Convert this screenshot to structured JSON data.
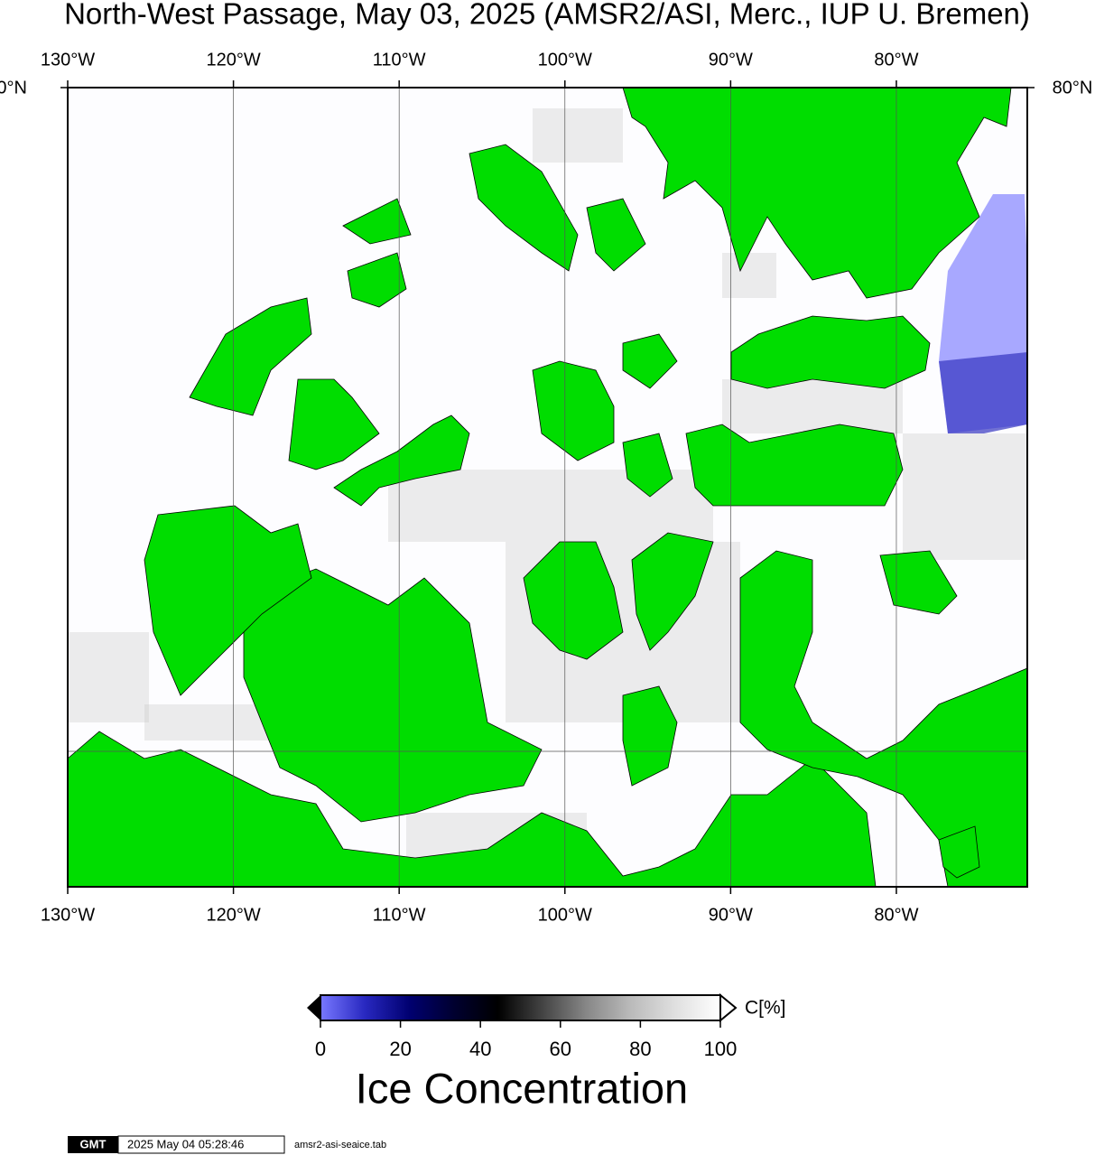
{
  "chart_data": {
    "type": "map",
    "title": "North-West Passage, May 03, 2025 (AMSR2/ASI, Merc., IUP U. Bremen)",
    "xlim": [
      -130,
      -72.1
    ],
    "xticks": [
      {
        "value": -130,
        "label": "130°W"
      },
      {
        "value": -120,
        "label": "120°W"
      },
      {
        "value": -110,
        "label": "110°W"
      },
      {
        "value": -100,
        "label": "100°W"
      },
      {
        "value": -90,
        "label": "90°W"
      },
      {
        "value": -80,
        "label": "80°W"
      }
    ],
    "ytick_top": {
      "value": 80,
      "label": "80°N"
    },
    "land_color": "#00dd00",
    "colorbar": {
      "lim": [
        0,
        100
      ],
      "ticks": [
        0,
        20,
        40,
        60,
        80,
        100
      ],
      "unit_label": "C[%]",
      "title": "Ice Concentration",
      "colors": [
        "#7878ff",
        "#2828c0",
        "#000070",
        "#000030",
        "#000000",
        "#444444",
        "#888888",
        "#bbbbbb",
        "#e0e0e0",
        "#ffffff"
      ]
    },
    "footer": {
      "logo": "GMT",
      "timestamp": "2025 May 04 05:28:46",
      "file": "amsr2-asi-seaice.tab"
    }
  }
}
